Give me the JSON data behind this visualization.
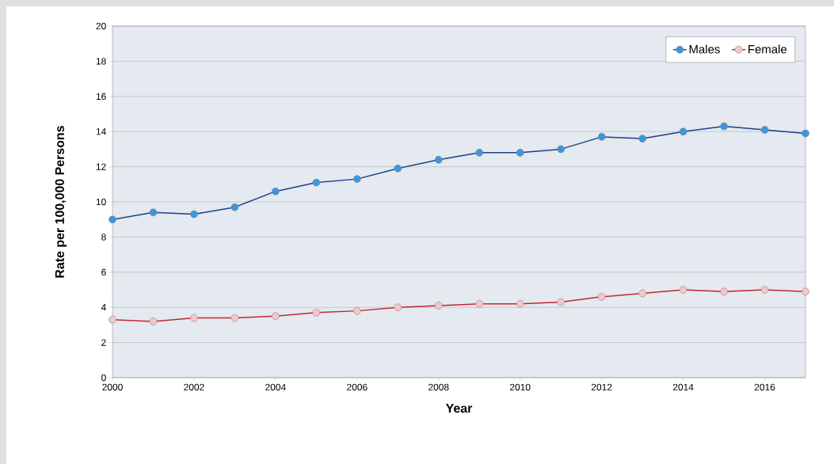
{
  "chart_data": {
    "type": "line",
    "xlabel": "Year",
    "ylabel": "Rate per 100,000 Persons",
    "x": [
      2000,
      2001,
      2002,
      2003,
      2004,
      2005,
      2006,
      2007,
      2008,
      2009,
      2010,
      2011,
      2012,
      2013,
      2014,
      2015,
      2016,
      2017
    ],
    "series": [
      {
        "name": "Males",
        "color": "#1f3f8a",
        "values": [
          9.0,
          9.4,
          9.3,
          9.7,
          10.6,
          11.1,
          11.3,
          11.9,
          12.4,
          12.8,
          12.8,
          13.0,
          13.7,
          13.6,
          14.0,
          14.3,
          14.1,
          13.9
        ]
      },
      {
        "name": "Female",
        "color": "#c0282d",
        "values": [
          3.3,
          3.2,
          3.4,
          3.4,
          3.5,
          3.7,
          3.8,
          4.0,
          4.1,
          4.2,
          4.2,
          4.3,
          4.6,
          4.8,
          5.0,
          4.9,
          5.0,
          4.9
        ]
      }
    ],
    "xlim": [
      2000,
      2017
    ],
    "ylim": [
      0,
      20
    ],
    "xticks": [
      2000,
      2002,
      2004,
      2006,
      2008,
      2010,
      2012,
      2014,
      2016
    ],
    "yticks": [
      0,
      2,
      4,
      6,
      8,
      10,
      12,
      14,
      16,
      18,
      20
    ],
    "grid": "y",
    "legend": "top right",
    "marker": "circle",
    "line_style": "solid"
  }
}
